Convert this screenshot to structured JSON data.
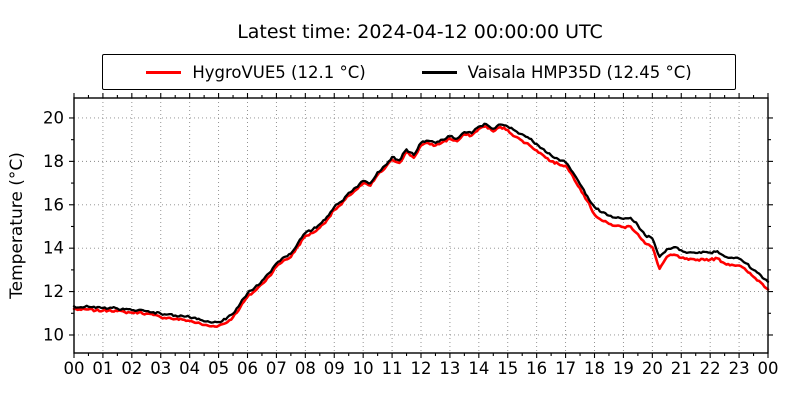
{
  "title": "Latest time: 2024-04-12 00:00:00 UTC",
  "legend": {
    "items": [
      {
        "label": "HygroVUE5 (12.1 °C)",
        "color": "#ff0000"
      },
      {
        "label": "Vaisala HMP35D (12.45 °C)",
        "color": "#000000"
      }
    ]
  },
  "chart_data": {
    "type": "line",
    "title": "Latest time: 2024-04-12 00:00:00 UTC",
    "xlabel": "",
    "ylabel": "Temperature (°C)",
    "xlim": [
      0,
      24
    ],
    "ylim": [
      9.17,
      20.92
    ],
    "grid": "dotted",
    "legend_position": "upper center",
    "x_ticks": [
      0,
      1,
      2,
      3,
      4,
      5,
      6,
      7,
      8,
      9,
      10,
      11,
      12,
      13,
      14,
      15,
      16,
      17,
      18,
      19,
      20,
      21,
      22,
      23,
      24
    ],
    "x_ticklabels": [
      "00",
      "01",
      "02",
      "03",
      "04",
      "05",
      "06",
      "07",
      "08",
      "09",
      "10",
      "11",
      "12",
      "13",
      "14",
      "15",
      "16",
      "17",
      "18",
      "19",
      "20",
      "21",
      "22",
      "23",
      "00"
    ],
    "y_ticks": [
      10,
      12,
      14,
      16,
      18,
      20
    ],
    "x_units": "hours UTC",
    "x": [
      0,
      0.25,
      0.5,
      0.75,
      1,
      1.25,
      1.5,
      1.75,
      2,
      2.25,
      2.5,
      2.75,
      3,
      3.25,
      3.5,
      3.75,
      4,
      4.25,
      4.5,
      4.75,
      5,
      5.25,
      5.5,
      5.75,
      6,
      6.25,
      6.5,
      6.75,
      7,
      7.25,
      7.5,
      7.75,
      8,
      8.25,
      8.5,
      8.75,
      9,
      9.25,
      9.5,
      9.75,
      10,
      10.25,
      10.5,
      10.75,
      11,
      11.25,
      11.5,
      11.75,
      12,
      12.25,
      12.5,
      12.75,
      13,
      13.25,
      13.5,
      13.75,
      14,
      14.25,
      14.5,
      14.75,
      15,
      15.25,
      15.5,
      15.75,
      16,
      16.25,
      16.5,
      16.75,
      17,
      17.25,
      17.5,
      17.75,
      18,
      18.25,
      18.5,
      18.75,
      19,
      19.25,
      19.5,
      19.75,
      20,
      20.25,
      20.5,
      20.75,
      21,
      21.25,
      21.5,
      21.75,
      22,
      22.25,
      22.5,
      22.75,
      23,
      23.25,
      23.5,
      23.75,
      24
    ],
    "series": [
      {
        "name": "HygroVUE5 (12.1 °C)",
        "sensor": "HygroVUE5",
        "latest_c": 12.1,
        "color": "#ff0000",
        "values": [
          11.2,
          11.16,
          11.18,
          11.13,
          11.12,
          11.14,
          11.1,
          11.06,
          11.03,
          11.04,
          10.98,
          10.92,
          10.82,
          10.79,
          10.73,
          10.71,
          10.65,
          10.56,
          10.46,
          10.4,
          10.43,
          10.55,
          10.82,
          11.28,
          11.76,
          12.02,
          12.35,
          12.7,
          13.15,
          13.43,
          13.6,
          14.1,
          14.55,
          14.7,
          14.95,
          15.3,
          15.76,
          16.02,
          16.42,
          16.68,
          16.98,
          16.88,
          17.38,
          17.68,
          18.08,
          17.93,
          18.43,
          18.17,
          18.73,
          18.84,
          18.73,
          18.89,
          19.04,
          18.93,
          19.24,
          19.19,
          19.5,
          19.62,
          19.38,
          19.58,
          19.44,
          19.14,
          18.95,
          18.75,
          18.5,
          18.25,
          18.0,
          17.88,
          17.8,
          17.32,
          16.76,
          16.18,
          15.55,
          15.28,
          15.12,
          15.03,
          14.97,
          15.0,
          14.65,
          14.22,
          14.05,
          13.05,
          13.6,
          13.7,
          13.55,
          13.47,
          13.45,
          13.5,
          13.47,
          13.53,
          13.3,
          13.24,
          13.2,
          12.97,
          12.68,
          12.42,
          12.1
        ]
      },
      {
        "name": "Vaisala HMP35D (12.45 °C)",
        "sensor": "Vaisala HMP35D",
        "latest_c": 12.45,
        "color": "#000000",
        "values": [
          11.32,
          11.28,
          11.3,
          11.25,
          11.24,
          11.26,
          11.22,
          11.18,
          11.15,
          11.16,
          11.1,
          11.05,
          10.98,
          10.95,
          10.9,
          10.88,
          10.82,
          10.73,
          10.63,
          10.57,
          10.6,
          10.72,
          10.98,
          11.45,
          11.92,
          12.18,
          12.5,
          12.85,
          13.3,
          13.58,
          13.75,
          14.25,
          14.7,
          14.85,
          15.1,
          15.45,
          15.9,
          16.15,
          16.55,
          16.8,
          17.1,
          17.0,
          17.5,
          17.8,
          18.2,
          18.05,
          18.55,
          18.3,
          18.85,
          18.95,
          18.85,
          19.0,
          19.15,
          19.05,
          19.35,
          19.3,
          19.6,
          19.72,
          19.5,
          19.7,
          19.6,
          19.42,
          19.25,
          19.05,
          18.8,
          18.55,
          18.28,
          18.1,
          17.95,
          17.5,
          16.95,
          16.4,
          15.9,
          15.65,
          15.5,
          15.4,
          15.35,
          15.4,
          15.05,
          14.6,
          14.45,
          13.6,
          13.95,
          14.05,
          13.9,
          13.8,
          13.78,
          13.84,
          13.8,
          13.86,
          13.62,
          13.56,
          13.52,
          13.3,
          13.0,
          12.75,
          12.45
        ]
      }
    ]
  }
}
